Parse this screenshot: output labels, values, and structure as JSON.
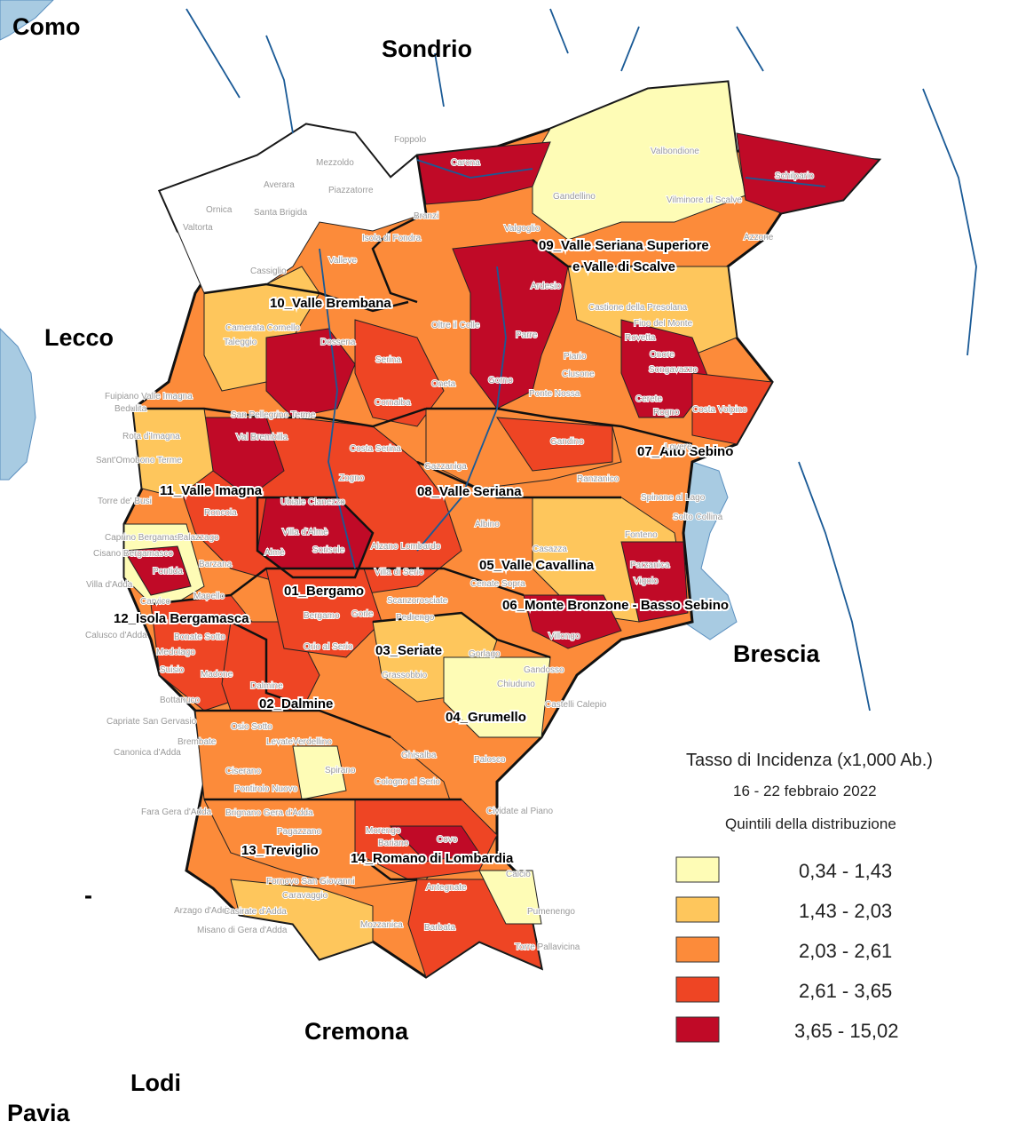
{
  "map": {
    "provinces": [
      {
        "name": "Como"
      },
      {
        "name": "Sondrio"
      },
      {
        "name": "Lecco"
      },
      {
        "name": "Brescia"
      },
      {
        "name": "Cremona"
      },
      {
        "name": "Lodi"
      },
      {
        "name": "Pavia"
      }
    ],
    "districts": [
      {
        "name": "09_Valle Seriana Superiore"
      },
      {
        "name": "e Valle di Scalve"
      },
      {
        "name": "10_Valle Brembana"
      },
      {
        "name": "07_Alto Sebino"
      },
      {
        "name": "11_Valle Imagna"
      },
      {
        "name": "08_Valle Seriana"
      },
      {
        "name": "05_Valle Cavallina"
      },
      {
        "name": "01_Bergamo"
      },
      {
        "name": "06_Monte Bronzone - Basso Sebino"
      },
      {
        "name": "12_Isola Bergamasca"
      },
      {
        "name": "03_Seriate"
      },
      {
        "name": "02_Dalmine"
      },
      {
        "name": "04_Grumello"
      },
      {
        "name": "13_Treviglio"
      },
      {
        "name": "14_Romano di Lombardia"
      }
    ],
    "municipalities": [
      {
        "name": "Foppolo"
      },
      {
        "name": "Carona"
      },
      {
        "name": "Valbondione"
      },
      {
        "name": "Schilpario"
      },
      {
        "name": "Mezzoldo"
      },
      {
        "name": "Averara"
      },
      {
        "name": "Piazzatorre"
      },
      {
        "name": "Santa Brigida"
      },
      {
        "name": "Gandellino"
      },
      {
        "name": "Vilminore di Scalve"
      },
      {
        "name": "Ornica"
      },
      {
        "name": "Valtorta"
      },
      {
        "name": "Branzi"
      },
      {
        "name": "Valgoglio"
      },
      {
        "name": "Azzone"
      },
      {
        "name": "Isola di Fondra"
      },
      {
        "name": "Valleve"
      },
      {
        "name": "Cassiglio"
      },
      {
        "name": "Ardesio"
      },
      {
        "name": "Camerata Cornello"
      },
      {
        "name": "Taleggio"
      },
      {
        "name": "Oltre il Colle"
      },
      {
        "name": "Castione della Presolana"
      },
      {
        "name": "Fino del Monte"
      },
      {
        "name": "Rovetta"
      },
      {
        "name": "Dossena"
      },
      {
        "name": "Serina"
      },
      {
        "name": "Parre"
      },
      {
        "name": "Piario"
      },
      {
        "name": "Onore"
      },
      {
        "name": "Songavazzo"
      },
      {
        "name": "Clusone"
      },
      {
        "name": "Gorno"
      },
      {
        "name": "Oneta"
      },
      {
        "name": "Ponte Nossa"
      },
      {
        "name": "Fuipiano Valle Imagna"
      },
      {
        "name": "Bedulita"
      },
      {
        "name": "Cornalba"
      },
      {
        "name": "Cerete"
      },
      {
        "name": "Rogno"
      },
      {
        "name": "Costa Volpino"
      },
      {
        "name": "San Pellegrino Terme"
      },
      {
        "name": "Rota d'Imagna"
      },
      {
        "name": "Val Brembilla"
      },
      {
        "name": "Sant'Omobono Terme"
      },
      {
        "name": "Costa Serina"
      },
      {
        "name": "Gandino"
      },
      {
        "name": "Lovere"
      },
      {
        "name": "Zogno"
      },
      {
        "name": "Gazzaniga"
      },
      {
        "name": "Torre de' Busi"
      },
      {
        "name": "Ranzanico"
      },
      {
        "name": "Roncola"
      },
      {
        "name": "Ubiale Clanezzo"
      },
      {
        "name": "Albino"
      },
      {
        "name": "Spinone al Lago"
      },
      {
        "name": "Solto Collina"
      },
      {
        "name": "Caprino Bergamasco"
      },
      {
        "name": "Palazzago"
      },
      {
        "name": "Villa d'Almè"
      },
      {
        "name": "Cisano Bergamasco"
      },
      {
        "name": "Sorisole"
      },
      {
        "name": "Almè"
      },
      {
        "name": "Alzano Lombardo"
      },
      {
        "name": "Fonteno"
      },
      {
        "name": "Casazza"
      },
      {
        "name": "Pontida"
      },
      {
        "name": "Barzana"
      },
      {
        "name": "Villa di Serio"
      },
      {
        "name": "Parzanica"
      },
      {
        "name": "Vigolo"
      },
      {
        "name": "Villa d'Adda"
      },
      {
        "name": "Mapello"
      },
      {
        "name": "Carvico"
      },
      {
        "name": "Bergamo"
      },
      {
        "name": "Gorle"
      },
      {
        "name": "Scanzorosciate"
      },
      {
        "name": "Cenate Sopra"
      },
      {
        "name": "Pedrengo"
      },
      {
        "name": "Calusco d'Adda"
      },
      {
        "name": "Bonate Sotto"
      },
      {
        "name": "Medolago"
      },
      {
        "name": "Orio al Serio"
      },
      {
        "name": "Villongo"
      },
      {
        "name": "Gorlago"
      },
      {
        "name": "Suisio"
      },
      {
        "name": "Madone"
      },
      {
        "name": "Grassobbio"
      },
      {
        "name": "Gandosso"
      },
      {
        "name": "Chiuduno"
      },
      {
        "name": "Dalmine"
      },
      {
        "name": "Bottanuco"
      },
      {
        "name": "Castelli Calepio"
      },
      {
        "name": "Capriate San Gervasio"
      },
      {
        "name": "Osio Sotto"
      },
      {
        "name": "Brembate"
      },
      {
        "name": "Levate"
      },
      {
        "name": "Verdellino"
      },
      {
        "name": "Ghisalba"
      },
      {
        "name": "Canonica d'Adda"
      },
      {
        "name": "Spirano"
      },
      {
        "name": "Palosco"
      },
      {
        "name": "Ciserano"
      },
      {
        "name": "Cologno al Serio"
      },
      {
        "name": "Pontirolo Nuovo"
      },
      {
        "name": "Cividate al Piano"
      },
      {
        "name": "Fara Gera d'Adda"
      },
      {
        "name": "Brignano Gera d'Adda"
      },
      {
        "name": "Morengo"
      },
      {
        "name": "Bariano"
      },
      {
        "name": "Covo"
      },
      {
        "name": "Pagazzano"
      },
      {
        "name": "Calcio"
      },
      {
        "name": "Caravaggio"
      },
      {
        "name": "Antegnate"
      },
      {
        "name": "Arzago d'Adda"
      },
      {
        "name": "Casirate d'Adda"
      },
      {
        "name": "Pumenengo"
      },
      {
        "name": "Misano di Gera d'Adda"
      },
      {
        "name": "Mozzanica"
      },
      {
        "name": "Barbata"
      },
      {
        "name": "Torre Pallavicina"
      },
      {
        "name": "Fornovo San Giovanni"
      }
    ],
    "stray_mark": "-",
    "colors": {
      "water": "#a8cbe2",
      "river": "#1a5a96",
      "quintile_1": "#fefcb6",
      "quintile_2": "#fec65c",
      "quintile_3": "#fc8b3a",
      "quintile_4": "#ee4524",
      "quintile_5": "#c00a27"
    }
  },
  "legend": {
    "title": "Tasso di Incidenza (x1,000 Ab.)",
    "period": "16 - 22 febbraio 2022",
    "subtitle": "Quintili della distribuzione",
    "classes": [
      {
        "range": "0,34 - 1,43",
        "color": "#fefcb6"
      },
      {
        "range": "1,43 - 2,03",
        "color": "#fec65c"
      },
      {
        "range": "2,03 - 2,61",
        "color": "#fc8b3a"
      },
      {
        "range": "2,61 - 3,65",
        "color": "#ee4524"
      },
      {
        "range": "3,65 - 15,02",
        "color": "#c00a27"
      }
    ]
  }
}
